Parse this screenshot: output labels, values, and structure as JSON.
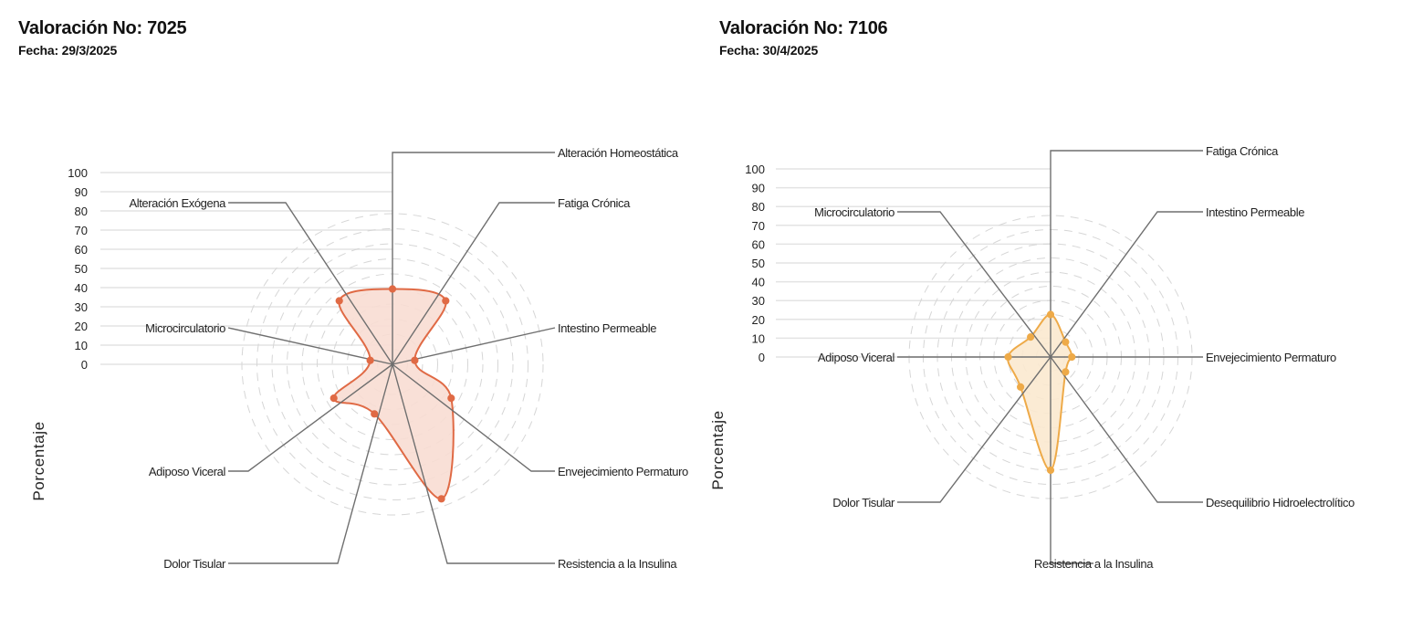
{
  "charts": [
    {
      "title": "Valoración No: 7025",
      "subtitle": "Fecha: 29/3/2025",
      "accent": "#e06a45",
      "fill": "#f8ddd3"
    },
    {
      "title": "Valoración No: 7106",
      "subtitle": "Fecha: 30/4/2025",
      "accent": "#eeaa48",
      "fill": "#fbe9cf"
    }
  ],
  "chart_data": [
    {
      "type": "radar",
      "ylabel": "Porcentaje",
      "rlim": [
        0,
        100
      ],
      "ticks": [
        "0",
        "10",
        "20",
        "30",
        "40",
        "50",
        "60",
        "70",
        "80",
        "90",
        "100"
      ],
      "categories": [
        "Alteración Homeostática",
        "Fatiga Crónica",
        "Intestino Permeable",
        "Envejecimiento Permaturo",
        "Resistencia a la Insulina",
        "Dolor Tisular",
        "Adiposo Viceral",
        "Microcirculatorio",
        "Alteración Exógena"
      ],
      "values": [
        50,
        55,
        15,
        45,
        95,
        35,
        45,
        15,
        55
      ]
    },
    {
      "type": "radar",
      "ylabel": "Porcentaje",
      "rlim": [
        0,
        100
      ],
      "ticks": [
        "0",
        "10",
        "20",
        "30",
        "40",
        "50",
        "60",
        "70",
        "80",
        "90",
        "100"
      ],
      "categories": [
        "Fatiga Crónica",
        "Intestino Permeable",
        "Envejecimiento Permaturo",
        "Desequilibrio Hidroelectrolítico",
        "Resistencia a la Insulina",
        "Dolor Tisular",
        "Adiposo Viceral",
        "Microcirculatorio"
      ],
      "values": [
        30,
        15,
        15,
        15,
        80,
        30,
        30,
        20
      ]
    }
  ]
}
